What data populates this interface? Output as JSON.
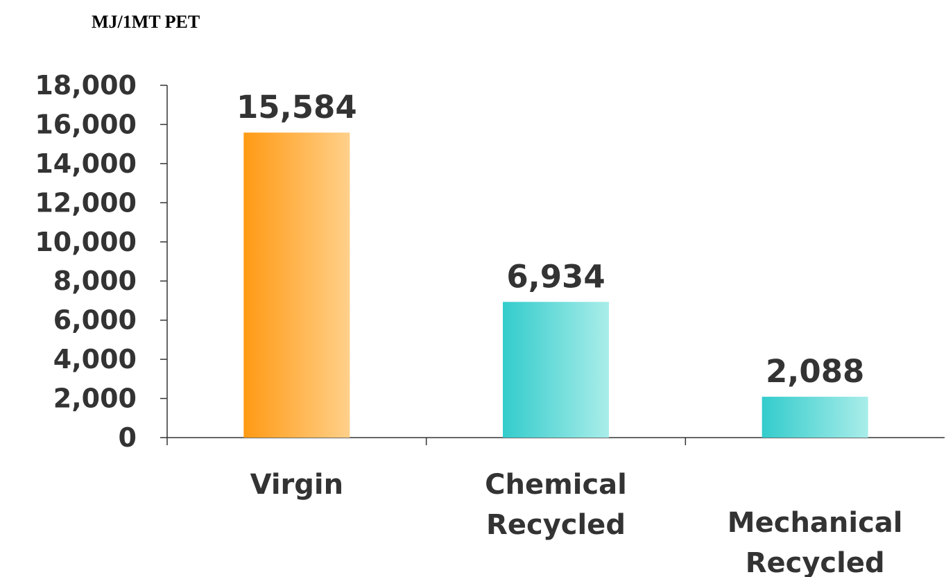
{
  "chart_data": {
    "type": "bar",
    "unit_label": "MJ/1MT PET",
    "categories": [
      [
        "Virgin"
      ],
      [
        "Chemical",
        "Recycled"
      ],
      [
        "Mechanical",
        "Recycled"
      ]
    ],
    "values": [
      15584,
      6934,
      2088
    ],
    "value_labels": [
      "15,584",
      "6,934",
      "2,088"
    ],
    "ylim": [
      0,
      18000
    ],
    "yticks": [
      0,
      2000,
      4000,
      6000,
      8000,
      10000,
      12000,
      14000,
      16000,
      18000
    ],
    "ytick_labels": [
      "0",
      "2,000",
      "4,000",
      "6,000",
      "8,000",
      "10,000",
      "12,000",
      "14,000",
      "16,000",
      "18,000"
    ],
    "grid": false,
    "legend": false,
    "colors": {
      "virgin_start": "#FF9A14",
      "virgin_end": "#FFD08A",
      "recycled_start": "#33CCCC",
      "recycled_end": "#A9EDE9",
      "text": "#333333",
      "axis": "#333333"
    }
  }
}
